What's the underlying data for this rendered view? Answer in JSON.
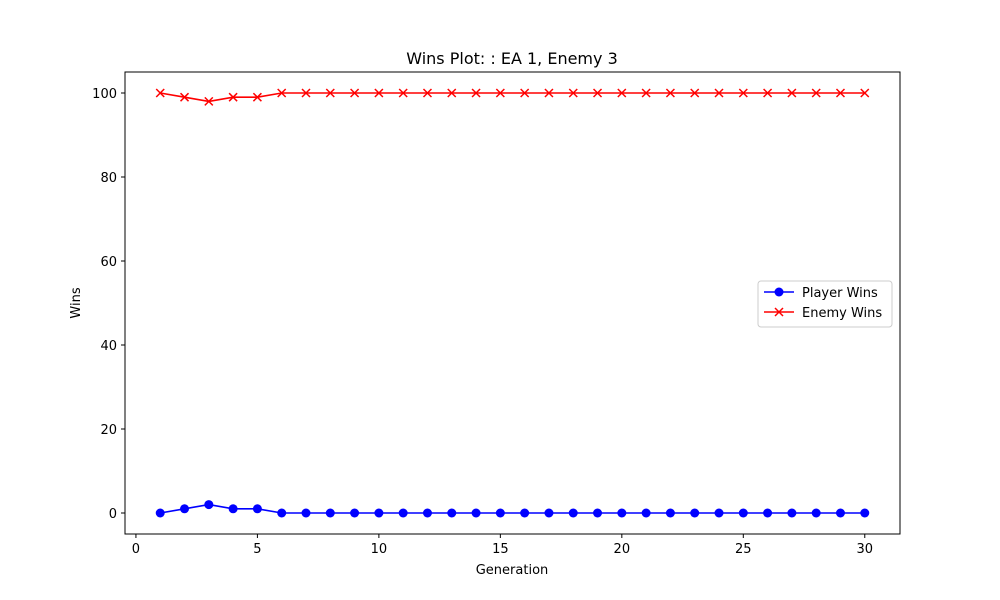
{
  "chart_data": {
    "type": "line",
    "title": "Wins Plot: : EA 1, Enemy 3",
    "xlabel": "Generation",
    "ylabel": "Wins",
    "xlim": [
      -0.45,
      31.45
    ],
    "ylim": [
      -5,
      105
    ],
    "xticks": [
      0,
      5,
      10,
      15,
      20,
      25,
      30
    ],
    "yticks": [
      0,
      20,
      40,
      60,
      80,
      100
    ],
    "grid": false,
    "legend_position": "center-right",
    "x": [
      1,
      2,
      3,
      4,
      5,
      6,
      7,
      8,
      9,
      10,
      11,
      12,
      13,
      14,
      15,
      16,
      17,
      18,
      19,
      20,
      21,
      22,
      23,
      24,
      25,
      26,
      27,
      28,
      29,
      30
    ],
    "series": [
      {
        "name": "Player Wins",
        "color": "#0000ff",
        "marker": "circle",
        "values": [
          0,
          1,
          2,
          1,
          1,
          0,
          0,
          0,
          0,
          0,
          0,
          0,
          0,
          0,
          0,
          0,
          0,
          0,
          0,
          0,
          0,
          0,
          0,
          0,
          0,
          0,
          0,
          0,
          0,
          0
        ]
      },
      {
        "name": "Enemy Wins",
        "color": "#ff0000",
        "marker": "x",
        "values": [
          100,
          99,
          98,
          99,
          99,
          100,
          100,
          100,
          100,
          100,
          100,
          100,
          100,
          100,
          100,
          100,
          100,
          100,
          100,
          100,
          100,
          100,
          100,
          100,
          100,
          100,
          100,
          100,
          100,
          100
        ]
      }
    ]
  }
}
